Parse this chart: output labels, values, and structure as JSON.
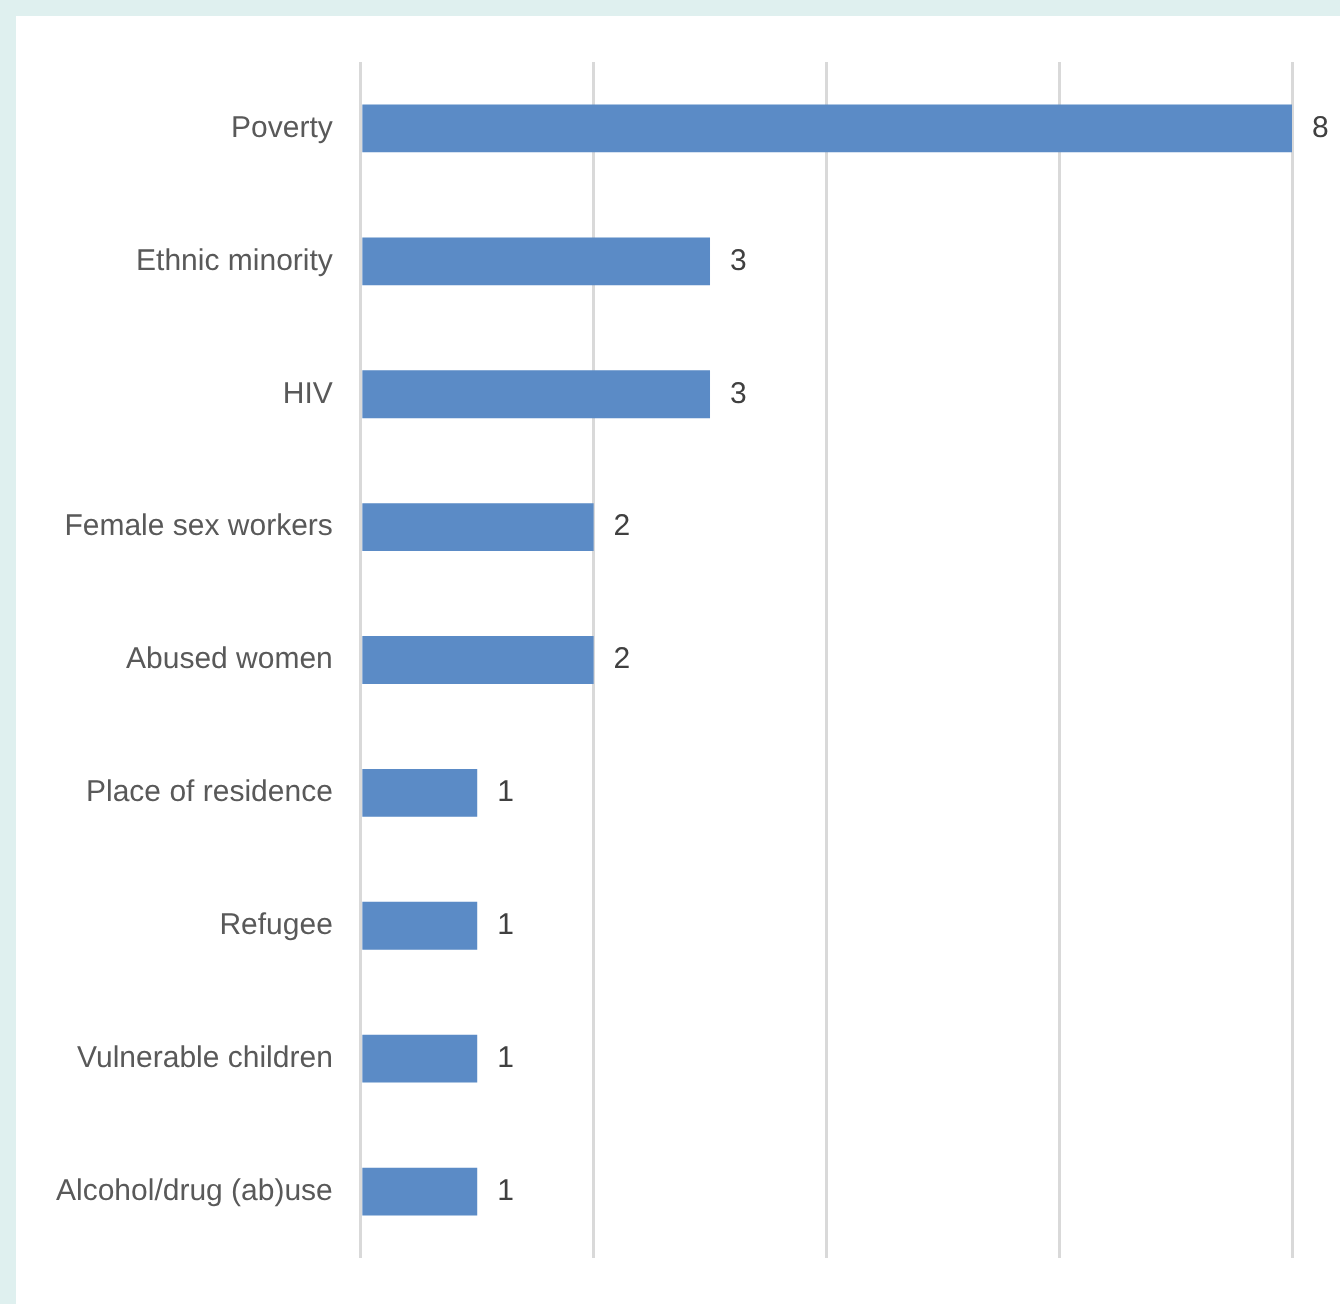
{
  "chart_data": {
    "type": "bar",
    "orientation": "horizontal",
    "categories": [
      "Poverty",
      "Ethnic minority",
      "HIV",
      "Female sex workers",
      "Abused women",
      "Place of residence",
      "Refugee",
      "Vulnerable children",
      "Alcohol/drug (ab)use"
    ],
    "values": [
      8,
      3,
      3,
      2,
      2,
      1,
      1,
      1,
      1
    ],
    "color": "#5b8bc6",
    "xlim": [
      0,
      8
    ],
    "xticks": [
      {
        "value": 0,
        "label": null
      },
      {
        "value": 2,
        "label": null
      },
      {
        "value": 4,
        "label": null
      },
      {
        "value": 6,
        "label": null
      },
      {
        "value": 8,
        "label": null
      }
    ],
    "grid": "x",
    "tick_labels": "y",
    "data_labels": true,
    "legend": false
  }
}
